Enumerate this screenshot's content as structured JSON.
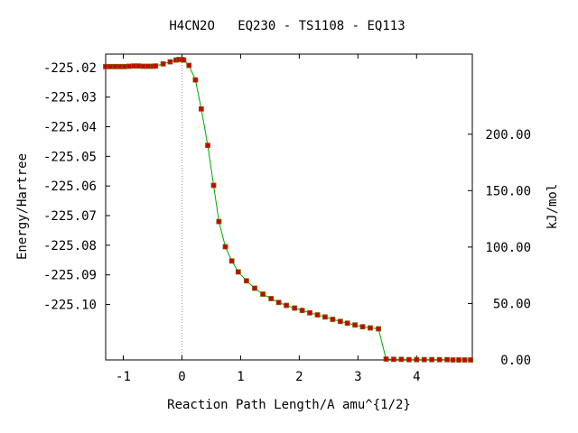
{
  "chart_data": {
    "type": "line",
    "title": "H4CN2O   EQ230 - TS1108 - EQ113",
    "xlabel": "Reaction Path Length/A amu^{1/2}",
    "ylabel": "Energy/Hartree",
    "y2label": "kJ/mol",
    "xlim": [
      -1.3,
      4.95
    ],
    "ylim": [
      -225.1187,
      -225.0155
    ],
    "x_ticks": [
      -1,
      0,
      1,
      2,
      3,
      4
    ],
    "x_tick_labels": [
      "-1",
      "0",
      "1",
      "2",
      "3",
      "4"
    ],
    "y_ticks": [
      -225.02,
      -225.03,
      -225.04,
      -225.05,
      -225.06,
      -225.07,
      -225.08,
      -225.09,
      -225.1
    ],
    "y_tick_labels": [
      "-225.02",
      "-225.03",
      "-225.04",
      "-225.05",
      "-225.06",
      "-225.07",
      "-225.08",
      "-225.09",
      "-225.10"
    ],
    "y2_ticks": [
      0,
      50,
      100,
      150,
      200
    ],
    "y2_tick_labels": [
      "0.00",
      "50.00",
      "100.00",
      "150.00",
      "200.00"
    ],
    "y2_zero_hartree": -225.1187,
    "kj_per_hartree": 2625.5,
    "ts_x": 0,
    "grid": false,
    "colors": {
      "line": "#00aa00",
      "marker": "#cc0000",
      "marker_edge": "#806000",
      "ts_line": "#999999"
    },
    "series": [
      {
        "x": [
          -1.3,
          -1.22,
          -1.14,
          -1.06,
          -0.98,
          -0.9,
          -0.82,
          -0.74,
          -0.66,
          -0.58,
          -0.5,
          -0.45,
          -0.32,
          -0.2,
          -0.1,
          -0.05,
          0.0,
          0.03,
          0.12,
          0.23,
          0.33,
          0.44,
          0.54,
          0.63,
          0.74,
          0.85,
          0.96,
          1.1,
          1.24,
          1.38,
          1.52,
          1.65,
          1.78,
          1.92,
          2.05,
          2.18,
          2.31,
          2.44,
          2.57,
          2.7,
          2.82,
          2.95,
          3.08,
          3.21,
          3.35,
          3.48,
          3.61,
          3.74,
          3.87,
          4.0,
          4.13,
          4.26,
          4.39,
          4.52,
          4.62,
          4.72,
          4.82,
          4.92
        ],
        "y": [
          -225.0197,
          -225.0197,
          -225.0197,
          -225.0197,
          -225.0197,
          -225.0196,
          -225.0195,
          -225.0195,
          -225.0196,
          -225.0196,
          -225.0196,
          -225.0195,
          -225.0188,
          -225.0181,
          -225.0175,
          -225.0173,
          -225.0173,
          -225.0175,
          -225.0193,
          -225.0242,
          -225.034,
          -225.0463,
          -225.0598,
          -225.072,
          -225.0805,
          -225.0853,
          -225.089,
          -225.092,
          -225.0945,
          -225.0965,
          -225.098,
          -225.0993,
          -225.1003,
          -225.1012,
          -225.102,
          -225.1028,
          -225.1035,
          -225.1042,
          -225.105,
          -225.1057,
          -225.1063,
          -225.1069,
          -225.1075,
          -225.1079,
          -225.1082,
          -225.1184,
          -225.1185,
          -225.1185,
          -225.1186,
          -225.1186,
          -225.1186,
          -225.1186,
          -225.1186,
          -225.1186,
          -225.1187,
          -225.1187,
          -225.1187,
          -225.1187
        ]
      }
    ]
  }
}
